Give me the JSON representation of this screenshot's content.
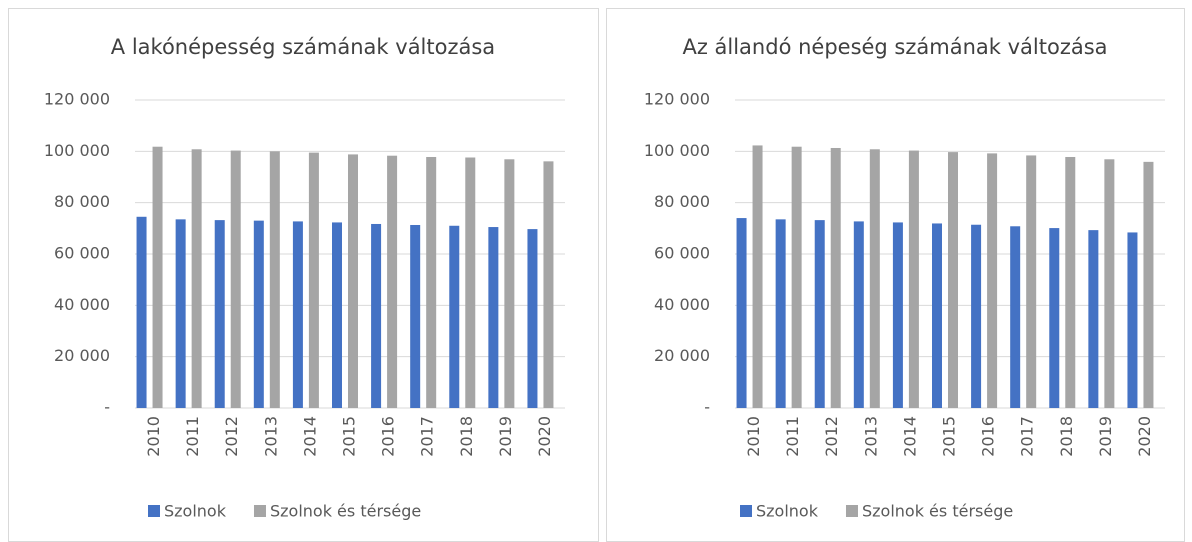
{
  "chart_data": [
    {
      "type": "bar",
      "title": "A lakónépesség számának változása",
      "categories": [
        "2010",
        "2011",
        "2012",
        "2013",
        "2014",
        "2015",
        "2016",
        "2017",
        "2018",
        "2019",
        "2020"
      ],
      "series": [
        {
          "name": "Szolnok",
          "color": "#4472c4",
          "values": [
            74500,
            73500,
            73200,
            73000,
            72700,
            72300,
            71700,
            71300,
            71000,
            70500,
            69700
          ]
        },
        {
          "name": "Szolnok és térsége",
          "color": "#a5a5a5",
          "values": [
            101800,
            100800,
            100300,
            100000,
            99500,
            98800,
            98300,
            97800,
            97600,
            96900,
            96100
          ]
        }
      ],
      "ylim": [
        0,
        120000
      ],
      "yticks": [
        {
          "value": 0,
          "label": "-"
        },
        {
          "value": 20000,
          "label": "20 000"
        },
        {
          "value": 40000,
          "label": "40 000"
        },
        {
          "value": 60000,
          "label": "60 000"
        },
        {
          "value": 80000,
          "label": "80 000"
        },
        {
          "value": 100000,
          "label": "100 000"
        },
        {
          "value": 120000,
          "label": "120 000"
        }
      ],
      "grid": true,
      "legend": "bottom"
    },
    {
      "type": "bar",
      "title": "Az állandó népeség számának változása",
      "categories": [
        "2010",
        "2011",
        "2012",
        "2013",
        "2014",
        "2015",
        "2016",
        "2017",
        "2018",
        "2019",
        "2020"
      ],
      "series": [
        {
          "name": "Szolnok",
          "color": "#4472c4",
          "values": [
            74000,
            73500,
            73200,
            72700,
            72300,
            71900,
            71400,
            70800,
            70100,
            69300,
            68400
          ]
        },
        {
          "name": "Szolnok és térsége",
          "color": "#a5a5a5",
          "values": [
            102300,
            101800,
            101300,
            100800,
            100300,
            99700,
            99200,
            98400,
            97800,
            96900,
            95900
          ]
        }
      ],
      "ylim": [
        0,
        120000
      ],
      "yticks": [
        {
          "value": 0,
          "label": "-"
        },
        {
          "value": 20000,
          "label": "20 000"
        },
        {
          "value": 40000,
          "label": "40 000"
        },
        {
          "value": 60000,
          "label": "60 000"
        },
        {
          "value": 80000,
          "label": "80 000"
        },
        {
          "value": 100000,
          "label": "100 000"
        },
        {
          "value": 120000,
          "label": "120 000"
        }
      ],
      "grid": true,
      "legend": "bottom"
    }
  ]
}
